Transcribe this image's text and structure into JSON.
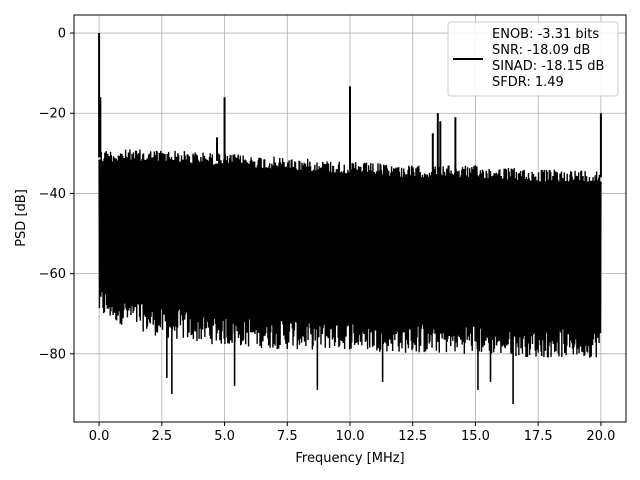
{
  "chart_data": {
    "type": "line",
    "title": "",
    "xlabel": "Frequency [MHz]",
    "ylabel": "PSD [dB]",
    "xlim": [
      -1.0,
      21.0
    ],
    "ylim": [
      -97,
      4.5
    ],
    "xticks": [
      0.0,
      2.5,
      5.0,
      7.5,
      10.0,
      12.5,
      15.0,
      17.5,
      20.0
    ],
    "xtick_labels": [
      "0.0",
      "2.5",
      "5.0",
      "7.5",
      "10.0",
      "12.5",
      "15.0",
      "17.5",
      "20.0"
    ],
    "yticks": [
      0,
      -20,
      -40,
      -60,
      -80
    ],
    "ytick_labels": [
      "0",
      "−20",
      "−40",
      "−60",
      "−80"
    ],
    "grid": true,
    "legend_position": "top-right",
    "legend_lines": [
      "ENOB: -3.31 bits",
      "SNR: -18.09 dB",
      "SINAD: -18.15 dB",
      "SFDR: 1.49"
    ],
    "series": [
      {
        "color": "#000000",
        "noise_band": {
          "x": [
            0.0,
            2.5,
            5.0,
            7.5,
            10.0,
            12.5,
            15.0,
            17.5,
            20.0
          ],
          "upper": [
            -28,
            -28,
            -29,
            -30,
            -31,
            -32,
            -32,
            -33,
            -33
          ],
          "lower": [
            -68,
            -73,
            -75,
            -76,
            -76,
            -77,
            -77,
            -78,
            -78
          ]
        },
        "spurs": [
          {
            "x": 0.0,
            "y": 0.0
          },
          {
            "x": 0.05,
            "y": -16
          },
          {
            "x": 4.7,
            "y": -26
          },
          {
            "x": 5.0,
            "y": -16
          },
          {
            "x": 10.0,
            "y": -13.3
          },
          {
            "x": 13.3,
            "y": -25
          },
          {
            "x": 13.5,
            "y": -20
          },
          {
            "x": 13.6,
            "y": -22
          },
          {
            "x": 14.2,
            "y": -21
          },
          {
            "x": 20.0,
            "y": -20
          }
        ],
        "dips": [
          {
            "x": 2.7,
            "y": -86
          },
          {
            "x": 2.9,
            "y": -90
          },
          {
            "x": 5.4,
            "y": -88
          },
          {
            "x": 8.7,
            "y": -89
          },
          {
            "x": 11.3,
            "y": -87
          },
          {
            "x": 15.1,
            "y": -89
          },
          {
            "x": 15.6,
            "y": -87
          },
          {
            "x": 16.5,
            "y": -92.5
          }
        ]
      }
    ]
  }
}
